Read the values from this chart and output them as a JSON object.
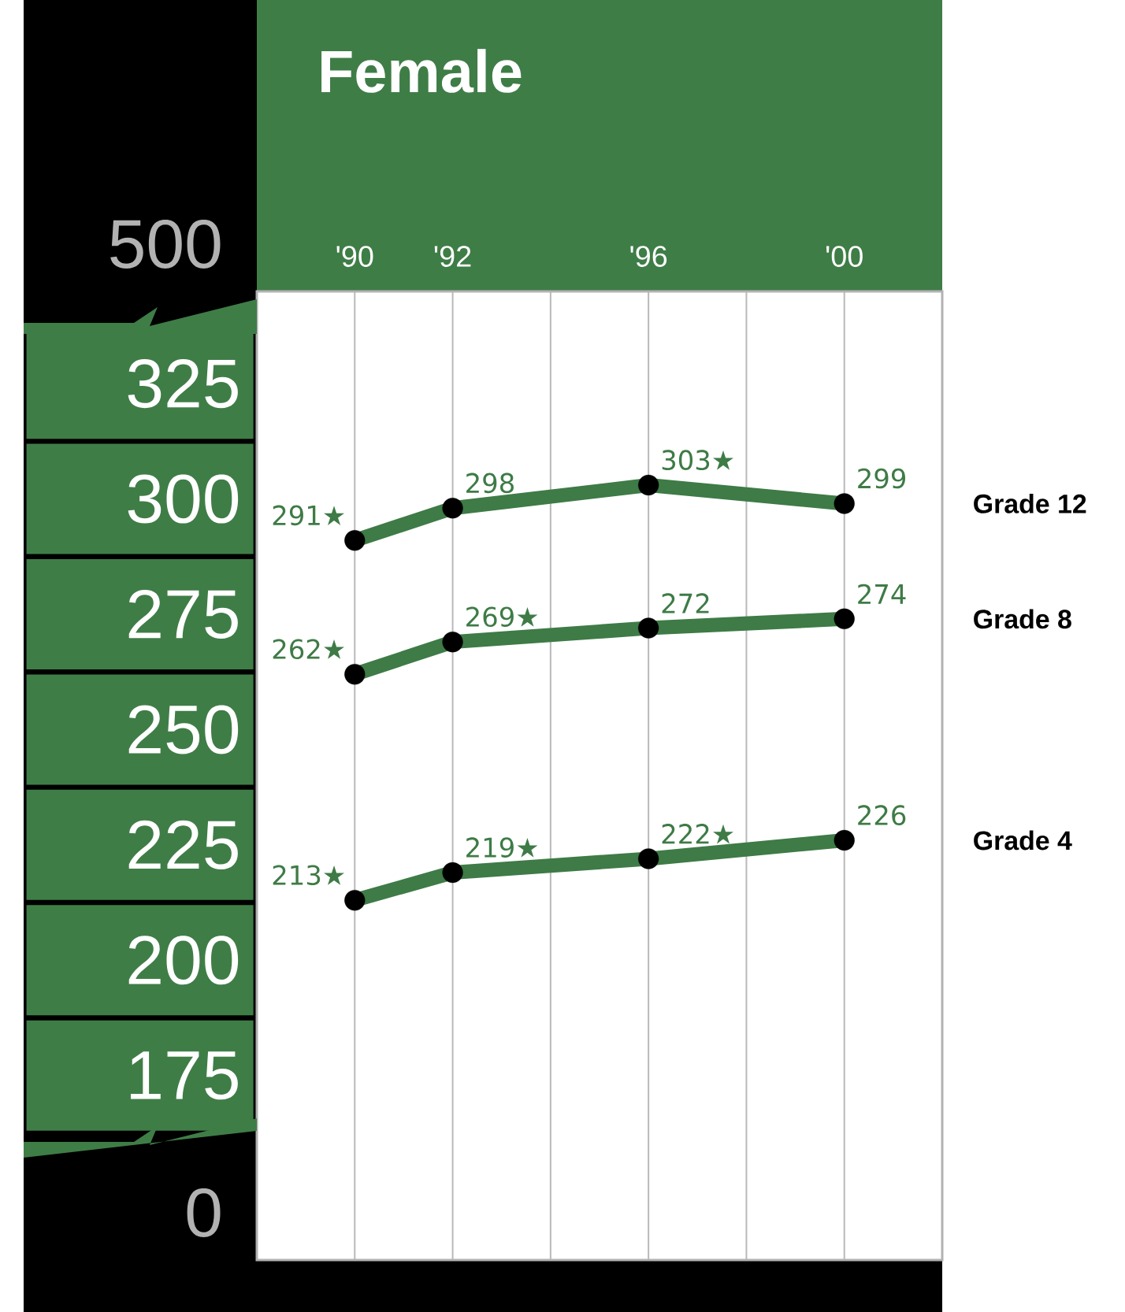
{
  "chart_data": {
    "type": "line",
    "title": "Female",
    "x": [
      1990,
      1992,
      1996,
      2000
    ],
    "xlim": [
      1988,
      2002
    ],
    "xticks": [
      {
        "value": 1990,
        "label": "'90"
      },
      {
        "value": 1992,
        "label": "'92"
      },
      {
        "value": 1994,
        "label": null
      },
      {
        "value": 1996,
        "label": "'96"
      },
      {
        "value": 1998,
        "label": null
      },
      {
        "value": 2000,
        "label": "'00"
      }
    ],
    "ylim": [
      135,
      345
    ],
    "yticks": [
      175,
      200,
      225,
      250,
      275,
      300,
      325
    ],
    "series": [
      {
        "name": "Grade 12",
        "color": "#3e7b46",
        "values": [
          291,
          298,
          303,
          299
        ],
        "value_labels": [
          "291★",
          "298",
          "303★",
          "299"
        ]
      },
      {
        "name": "Grade 8",
        "color": "#3e7b46",
        "values": [
          262,
          269,
          272,
          274
        ],
        "value_labels": [
          "262★",
          "269★",
          "272",
          "274"
        ]
      },
      {
        "name": "Grade 4",
        "color": "#3e7b46",
        "values": [
          213,
          219,
          222,
          226
        ],
        "value_labels": [
          "213★",
          "219★",
          "222★",
          "226"
        ]
      }
    ],
    "annotations": [
      "500",
      "0"
    ],
    "grid": "x",
    "marker": "circle",
    "line_style": "solid"
  }
}
